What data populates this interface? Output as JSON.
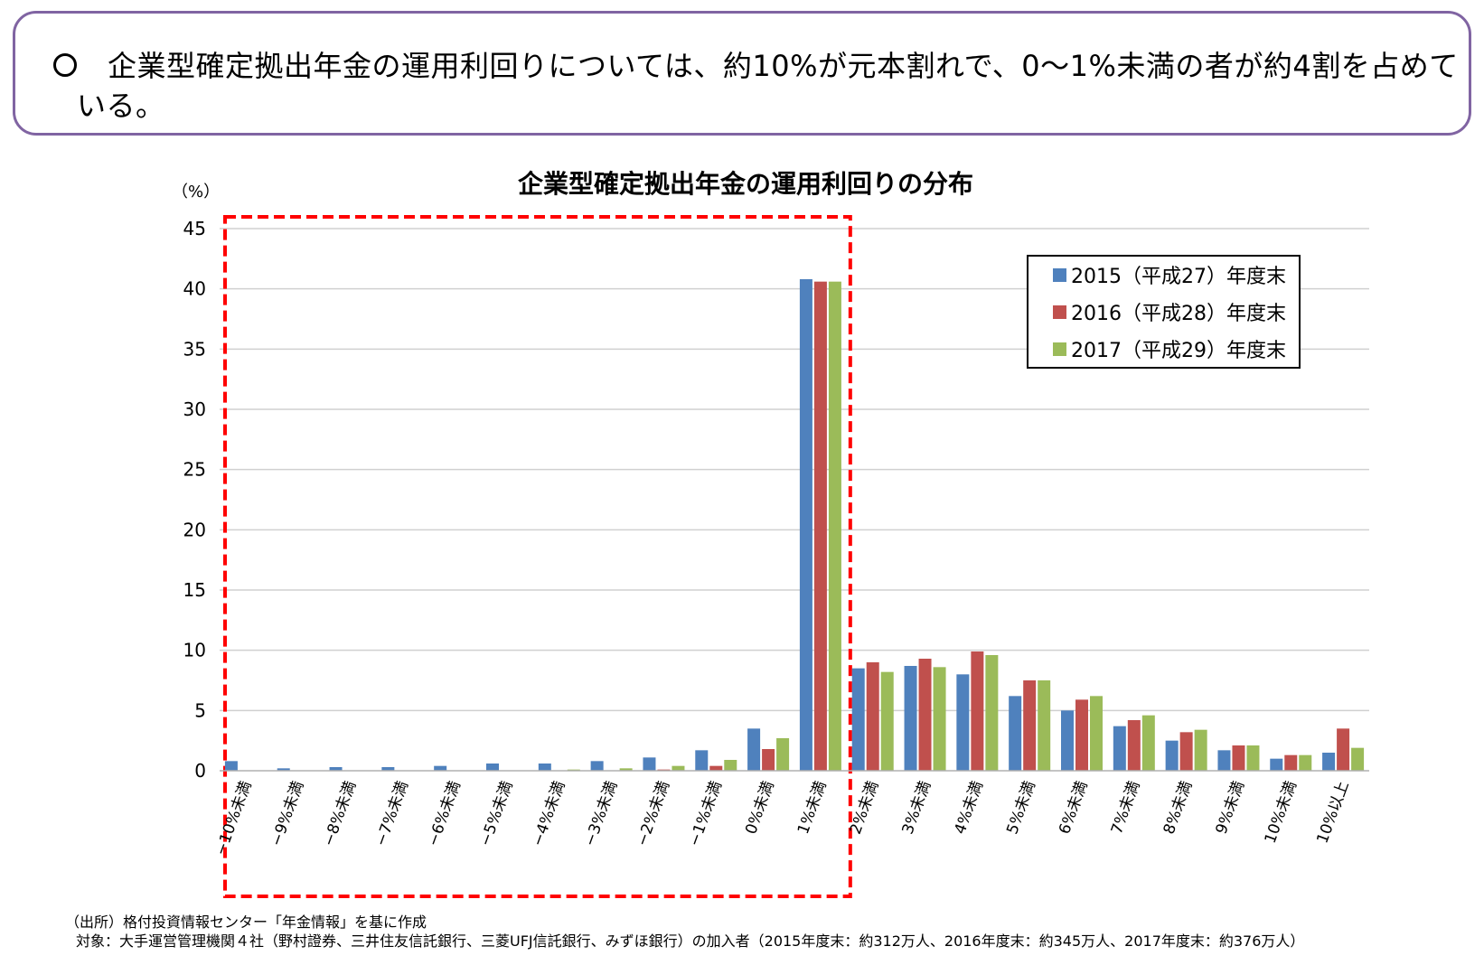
{
  "summary": {
    "text": "企業型確定拠出年金の運用利回りについては、約10%が元本割れで、0〜1%未満の者が約4割を占めている。"
  },
  "chart_data": {
    "type": "bar",
    "title": "企業型確定拠出年金の運用利回りの分布",
    "ylabel": "（%）",
    "xlabel": "",
    "ylim": [
      0,
      45
    ],
    "yticks": [
      0,
      5,
      10,
      15,
      20,
      25,
      30,
      35,
      40,
      45
    ],
    "grid": true,
    "legend_position": "top-right",
    "categories": [
      "−10%未満",
      "−9%未満",
      "−8%未満",
      "−7%未満",
      "−6%未満",
      "−5%未満",
      "−4%未満",
      "−3%未満",
      "−2%未満",
      "−1%未満",
      "0%未満",
      "1%未満",
      "2%未満",
      "3%未満",
      "4%未満",
      "5%未満",
      "6%未満",
      "7%未満",
      "8%未満",
      "9%未満",
      "10%未満",
      "10%以上"
    ],
    "series": [
      {
        "name": "2015（平成27）年度末",
        "color": "#4f81bd",
        "values": [
          0.8,
          0.2,
          0.3,
          0.3,
          0.4,
          0.6,
          0.6,
          0.8,
          1.1,
          1.7,
          3.5,
          40.8,
          8.5,
          8.7,
          8.0,
          6.2,
          5.0,
          3.7,
          2.5,
          1.7,
          1.0,
          1.5
        ]
      },
      {
        "name": "2016（平成28）年度末",
        "color": "#c0504d",
        "values": [
          0,
          0,
          0,
          0,
          0,
          0,
          0,
          0,
          0.1,
          0.4,
          1.8,
          40.6,
          9.0,
          9.3,
          9.9,
          7.5,
          5.9,
          4.2,
          3.2,
          2.1,
          1.3,
          3.5
        ]
      },
      {
        "name": "2017（平成29）年度末",
        "color": "#9bbb59",
        "values": [
          0,
          0,
          0,
          0,
          0,
          0,
          0.1,
          0.2,
          0.4,
          0.9,
          2.7,
          40.6,
          8.2,
          8.6,
          9.6,
          7.5,
          6.2,
          4.6,
          3.4,
          2.1,
          1.3,
          1.9
        ]
      }
    ],
    "highlight_color": "#ff0000"
  },
  "footnotes": {
    "source": "（出所）格付投資情報センター「年金情報」を基に作成",
    "target": "対象：大手運営管理機関４社（野村證券、三井住友信託銀行、三菱UFJ信託銀行、みずほ銀行）の加入者（2015年度末：約312万人、2016年度末：約345万人、2017年度末：約376万人）"
  }
}
